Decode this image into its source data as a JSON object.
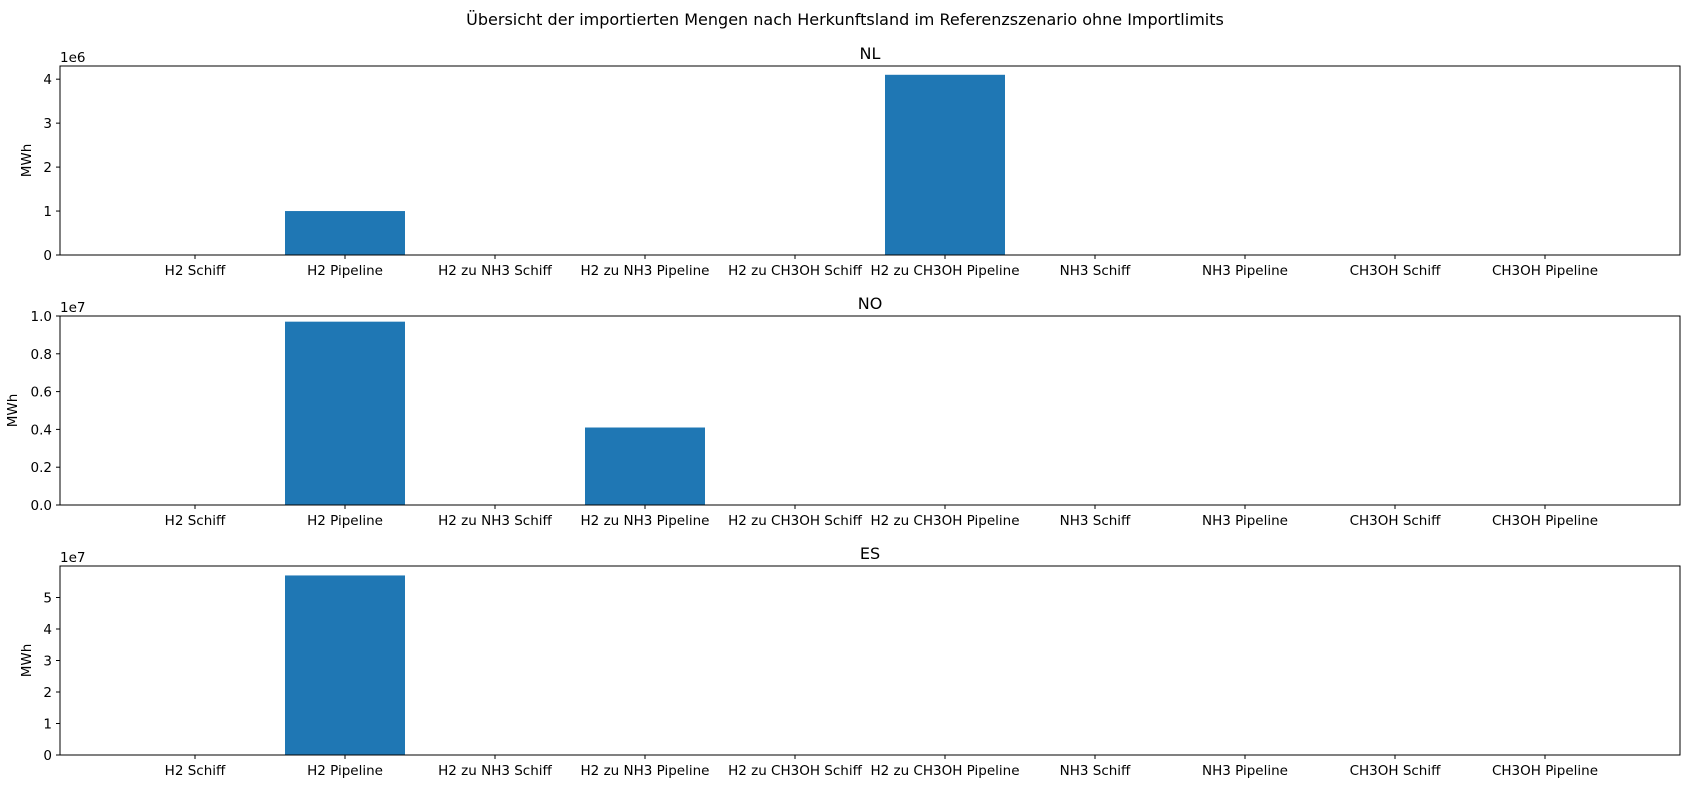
{
  "figure": {
    "suptitle": "Übersicht der importierten Mengen nach Herkunftsland im Referenzszenario ohne Importlimits",
    "bar_color": "#1f77b4"
  },
  "chart_data": [
    {
      "type": "bar",
      "title": "NL",
      "ylabel": "MWh",
      "offset_label": "1e6",
      "categories": [
        "H2 Schiff",
        "H2 Pipeline",
        "H2 zu NH3 Schiff",
        "H2 zu NH3 Pipeline",
        "H2 zu CH3OH Schiff",
        "H2 zu CH3OH Pipeline",
        "NH3 Schiff",
        "NH3 Pipeline",
        "CH3OH Schiff",
        "CH3OH Pipeline"
      ],
      "values": [
        0,
        1000000,
        0,
        0,
        0,
        4100000,
        0,
        0,
        0,
        0
      ],
      "ylim": [
        0,
        4300000
      ],
      "yticks": [
        0,
        1000000,
        2000000,
        3000000,
        4000000
      ],
      "ytick_labels": [
        "0",
        "1",
        "2",
        "3",
        "4"
      ],
      "grid": false
    },
    {
      "type": "bar",
      "title": "NO",
      "ylabel": "MWh",
      "offset_label": "1e7",
      "categories": [
        "H2 Schiff",
        "H2 Pipeline",
        "H2 zu NH3 Schiff",
        "H2 zu NH3 Pipeline",
        "H2 zu CH3OH Schiff",
        "H2 zu CH3OH Pipeline",
        "NH3 Schiff",
        "NH3 Pipeline",
        "CH3OH Schiff",
        "CH3OH Pipeline"
      ],
      "values": [
        0,
        9700000,
        0,
        4100000,
        0,
        0,
        0,
        0,
        0,
        0
      ],
      "ylim": [
        0,
        10000000
      ],
      "yticks": [
        0,
        2000000,
        4000000,
        6000000,
        8000000,
        10000000
      ],
      "ytick_labels": [
        "0.0",
        "0.2",
        "0.4",
        "0.6",
        "0.8",
        "1.0"
      ],
      "grid": false
    },
    {
      "type": "bar",
      "title": "ES",
      "ylabel": "MWh",
      "offset_label": "1e7",
      "categories": [
        "H2 Schiff",
        "H2 Pipeline",
        "H2 zu NH3 Schiff",
        "H2 zu NH3 Pipeline",
        "H2 zu CH3OH Schiff",
        "H2 zu CH3OH Pipeline",
        "NH3 Schiff",
        "NH3 Pipeline",
        "CH3OH Schiff",
        "CH3OH Pipeline"
      ],
      "values": [
        0,
        57000000,
        0,
        0,
        0,
        0,
        0,
        0,
        0,
        0
      ],
      "ylim": [
        0,
        60000000
      ],
      "yticks": [
        0,
        10000000,
        20000000,
        30000000,
        40000000,
        50000000
      ],
      "ytick_labels": [
        "0",
        "1",
        "2",
        "3",
        "4",
        "5"
      ],
      "grid": false
    }
  ]
}
